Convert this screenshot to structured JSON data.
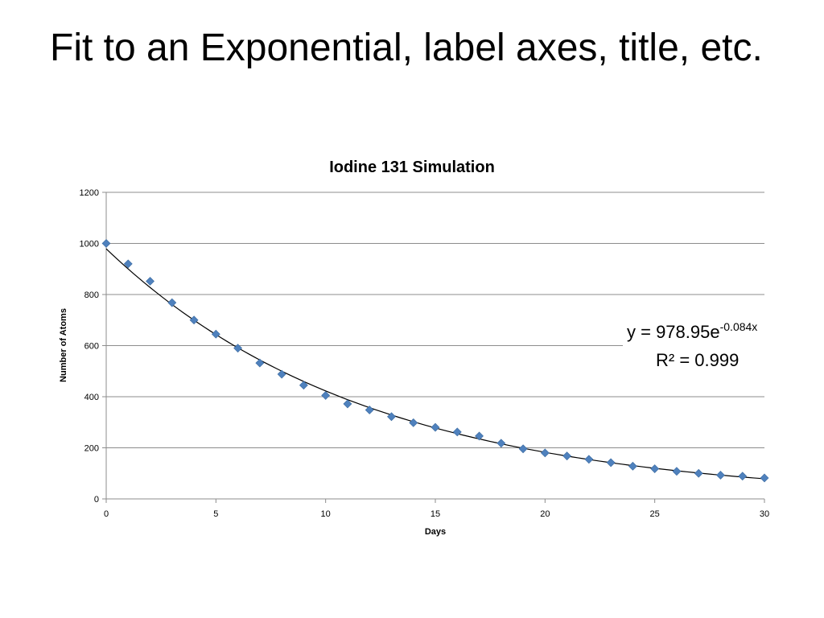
{
  "slide": {
    "title": "Fit to an Exponential, label axes, title, etc."
  },
  "chart_data": {
    "type": "scatter",
    "title": "Iodine 131 Simulation",
    "xlabel": "Days",
    "ylabel": "Number of Atoms",
    "xlim": [
      0,
      30
    ],
    "ylim": [
      0,
      1200
    ],
    "xticks": [
      "0",
      "5",
      "10",
      "15",
      "20",
      "25",
      "30"
    ],
    "yticks": [
      "0",
      "200",
      "400",
      "600",
      "800",
      "1000",
      "1200"
    ],
    "grid": "horizontal",
    "series": [
      {
        "marker": "diamond",
        "color": "#4f81bd",
        "x": [
          0,
          1,
          2,
          3,
          4,
          5,
          6,
          7,
          8,
          9,
          10,
          11,
          12,
          13,
          14,
          15,
          16,
          17,
          18,
          19,
          20,
          21,
          22,
          23,
          24,
          25,
          26,
          27,
          28,
          29,
          30
        ],
        "y": [
          1000,
          920,
          852,
          768,
          700,
          645,
          590,
          532,
          488,
          445,
          405,
          372,
          348,
          322,
          298,
          280,
          262,
          246,
          218,
          196,
          180,
          168,
          155,
          142,
          128,
          118,
          108,
          100,
          93,
          89,
          82
        ]
      }
    ],
    "trendline": {
      "type": "exponential",
      "a": 978.95,
      "b": -0.084,
      "color": "#000000",
      "equation_main": "y = 978.95e",
      "equation_exponent": "-0.084x",
      "r_squared": "R² = 0.999"
    }
  }
}
